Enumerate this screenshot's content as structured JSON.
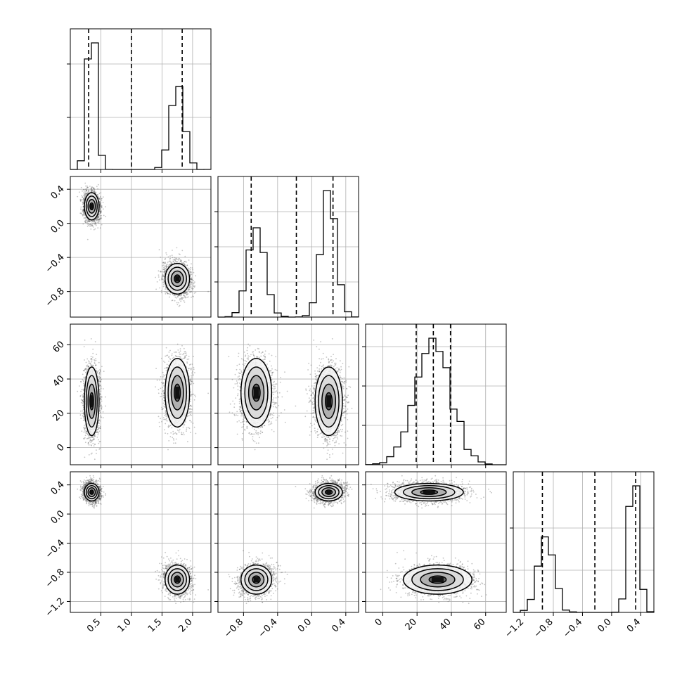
{
  "chart_data": {
    "type": "corner",
    "parameters": [
      {
        "range": [
          0.0,
          2.3
        ],
        "ticks": [
          0.5,
          1.0,
          1.5,
          2.0
        ],
        "tick_labels": [
          "0.5",
          "1.0",
          "1.5",
          "2.0"
        ],
        "quantiles": [
          0.3,
          1.0,
          1.83
        ]
      },
      {
        "range": [
          -1.1,
          0.55
        ],
        "ticks": [
          -0.8,
          -0.4,
          0.0,
          0.4
        ],
        "tick_labels": [
          "−0.8",
          "−0.4",
          "0.0",
          "0.4"
        ],
        "quantiles": [
          -0.71,
          -0.18,
          0.25
        ]
      },
      {
        "range": [
          -10,
          72
        ],
        "ticks": [
          0,
          20,
          40,
          60
        ],
        "tick_labels": [
          "0",
          "20",
          "40",
          "60"
        ],
        "quantiles": [
          19.5,
          29.5,
          39.5
        ]
      },
      {
        "range": [
          -1.35,
          0.58
        ],
        "ticks": [
          -1.2,
          -0.8,
          -0.4,
          0.0,
          0.4
        ],
        "tick_labels": [
          "−1.2",
          "−0.8",
          "−0.4",
          "0.0",
          "0.4"
        ],
        "quantiles": [
          -0.95,
          -0.23,
          0.33
        ]
      }
    ],
    "clusters": [
      {
        "center": [
          0.35,
          0.2,
          27,
          0.3
        ],
        "sd": [
          0.06,
          0.08,
          10,
          0.06
        ],
        "weight": 0.55
      },
      {
        "center": [
          1.75,
          -0.65,
          32,
          -0.9
        ],
        "sd": [
          0.1,
          0.09,
          10,
          0.1
        ],
        "weight": 0.45
      }
    ],
    "hist_grid_y": {
      "0": [
        0.37,
        0.75
      ],
      "1": [
        0.25,
        0.5,
        0.75
      ],
      "2": [
        0.28,
        0.56,
        0.84
      ],
      "3": [
        0.3,
        0.6
      ]
    },
    "hist_peak": 0.9,
    "grid": true,
    "colors": {
      "points": "#555555",
      "lines": "#000000",
      "grid": "#b0b0b0",
      "quantile": "#000000"
    }
  }
}
